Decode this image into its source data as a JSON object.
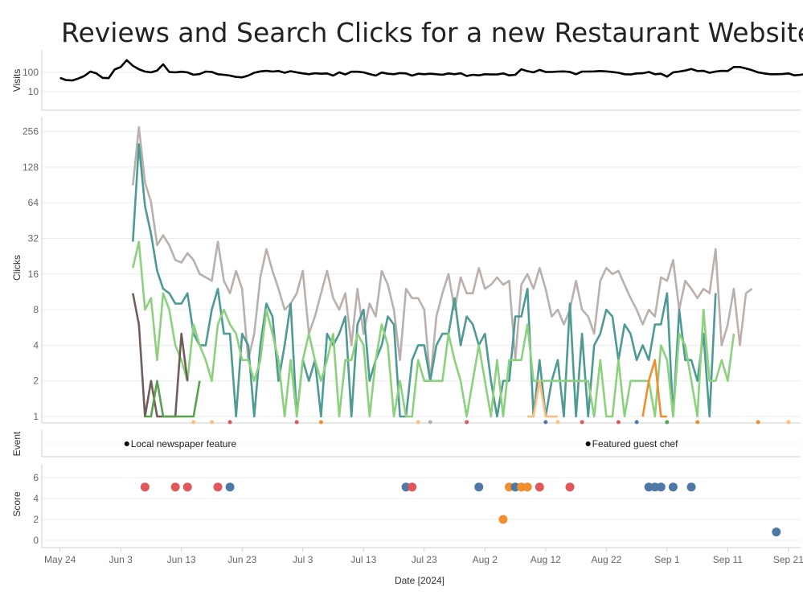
{
  "title": "Reviews and Search Clicks for a new Restaurant Website",
  "chart_data": {
    "type": "line",
    "xlabel": "Date [2024]",
    "x_ticks": [
      "May 24",
      "Jun 3",
      "Jun 13",
      "Jun 23",
      "Jul 3",
      "Jul 13",
      "Jul 23",
      "Aug 2",
      "Aug 12",
      "Aug 22",
      "Sep 1",
      "Sep 11",
      "Sep 21"
    ],
    "x_range": [
      "2024-05-21",
      "2024-09-23"
    ],
    "panels": {
      "visits": {
        "ylabel": "Visits",
        "scale": "log",
        "y_ticks": [
          "100",
          "10"
        ],
        "color": "#000000",
        "start": "2024-05-24",
        "values": [
          52,
          40,
          38,
          48,
          65,
          110,
          88,
          52,
          50,
          140,
          190,
          430,
          220,
          145,
          110,
          100,
          125,
          260,
          105,
          100,
          108,
          100,
          75,
          82,
          110,
          105,
          80,
          75,
          68,
          58,
          55,
          68,
          95,
          112,
          120,
          110,
          118,
          95,
          115,
          100,
          88,
          80,
          90,
          85,
          88,
          68,
          100,
          78,
          108,
          108,
          100,
          82,
          68,
          98,
          85,
          80,
          92,
          88,
          68,
          85,
          80,
          85,
          80,
          75,
          88,
          80,
          90,
          65,
          75,
          70,
          80,
          78,
          78,
          88,
          70,
          75,
          145,
          115,
          100,
          135,
          105,
          105,
          110,
          112,
          105,
          80,
          110,
          110,
          112,
          118,
          112,
          105,
          95,
          80,
          78,
          88,
          90,
          105,
          80,
          85,
          60,
          100,
          110,
          125,
          150,
          118,
          120,
          95,
          110,
          120,
          118,
          190,
          190,
          160,
          130,
          100,
          88,
          80,
          80,
          82,
          88,
          70,
          75,
          85,
          82,
          82,
          85
        ]
      },
      "clicks": {
        "ylabel": "Clicks",
        "scale": "log2",
        "y_ticks": [
          "1",
          "2",
          "4",
          "8",
          "16",
          "32",
          "64",
          "128",
          "256"
        ],
        "series": [
          {
            "color": "#bab0ac",
            "start": "2024-06-05",
            "values": [
              90,
              280,
              95,
              65,
              28,
              34,
              28,
              21,
              20,
              24,
              21,
              16,
              15,
              14,
              30,
              14,
              11,
              17,
              12,
              3,
              5,
              15,
              26,
              17,
              12,
              8,
              9,
              11,
              17,
              5,
              7,
              11,
              17,
              10,
              8,
              11,
              4,
              12,
              5,
              9,
              7,
              17,
              13,
              8,
              3,
              12,
              10,
              10,
              8,
              2,
              7,
              11,
              16,
              8,
              15,
              11,
              11,
              18,
              12,
              13,
              15,
              13,
              14,
              3,
              13,
              16,
              12,
              18,
              12,
              7,
              8,
              6,
              8,
              14,
              8,
              7,
              5,
              14,
              18,
              16,
              17,
              13,
              10,
              8,
              6,
              8,
              7,
              15,
              14,
              21,
              8,
              14,
              12,
              10,
              12,
              11,
              26,
              4,
              6,
              12,
              4,
              11,
              12
            ]
          },
          {
            "color": "#4e9a94",
            "start": "2024-06-05",
            "values": [
              30,
              200,
              60,
              35,
              17,
              12,
              11,
              9,
              9,
              11,
              5,
              4,
              4,
              8,
              12,
              5,
              5,
              1,
              5,
              4,
              1,
              4,
              9,
              7,
              2,
              4,
              9,
              1,
              3,
              2,
              3,
              1,
              5,
              4,
              5,
              7,
              1,
              6,
              8,
              2,
              3,
              4,
              7,
              6,
              1,
              1,
              3,
              4,
              4,
              2,
              4,
              5,
              5,
              10,
              4,
              7,
              6,
              4,
              5,
              2,
              1,
              2,
              2,
              7,
              7,
              12,
              1,
              3,
              1,
              2,
              3,
              1,
              9,
              1,
              5,
              1,
              4,
              5,
              8,
              7,
              3,
              6,
              5,
              3,
              4,
              3,
              6,
              6,
              11,
              1,
              8,
              3,
              3,
              2,
              5,
              1,
              11
            ]
          },
          {
            "color": "#8cd17d",
            "start": "2024-06-05",
            "values": [
              18,
              30,
              8,
              10,
              3,
              11,
              8,
              4,
              3,
              2,
              6,
              4,
              3,
              2,
              6,
              8,
              6,
              5,
              3,
              3,
              2,
              3,
              8,
              5,
              3,
              1,
              3,
              1,
              3,
              5,
              3,
              2,
              3,
              5,
              1,
              3,
              3,
              5,
              4,
              1,
              3,
              6,
              4,
              1,
              2,
              1,
              1,
              3,
              2,
              2,
              2,
              2,
              5,
              3,
              2,
              1,
              2,
              4,
              2,
              1,
              3,
              1,
              3,
              3,
              3,
              6,
              2,
              2,
              2,
              2,
              2,
              2,
              2,
              2,
              2,
              2,
              1,
              3,
              1,
              1,
              3,
              1,
              2,
              2,
              2,
              2,
              1,
              4,
              3,
              1,
              5,
              4,
              2,
              1,
              8,
              2,
              2,
              3,
              2,
              5
            ]
          },
          {
            "color": "#6f5f58",
            "start": "2024-06-05",
            "values": [
              11,
              6,
              1,
              2,
              1,
              1,
              1,
              1,
              5,
              2
            ]
          },
          {
            "color": "#59a14f",
            "start": "2024-06-07",
            "values": [
              1,
              1,
              2,
              1,
              1,
              1,
              1,
              1,
              1,
              2
            ]
          },
          {
            "color": "#ffbe7d",
            "start": "2024-08-09",
            "values": [
              1,
              1,
              2,
              1,
              1,
              1
            ]
          },
          {
            "color": "#f28e2b",
            "start": "2024-08-28",
            "values": [
              1,
              2,
              3,
              1,
              1
            ]
          }
        ]
      },
      "event": {
        "ylabel": "Event",
        "items": [
          {
            "date": "2024-06-04",
            "label": "Local newspaper feature"
          },
          {
            "date": "2024-08-19",
            "label": "Featured guest chef"
          }
        ]
      },
      "score": {
        "ylabel": "Score",
        "y_ticks": [
          "0",
          "2",
          "4",
          "6"
        ],
        "points": [
          {
            "date": "2024-06-07",
            "score": 5.1,
            "color": "#e15759"
          },
          {
            "date": "2024-06-12",
            "score": 5.1,
            "color": "#e15759"
          },
          {
            "date": "2024-06-14",
            "score": 5.1,
            "color": "#e15759"
          },
          {
            "date": "2024-06-19",
            "score": 5.1,
            "color": "#e15759"
          },
          {
            "date": "2024-06-21",
            "score": 5.1,
            "color": "#4e79a7"
          },
          {
            "date": "2024-07-20",
            "score": 5.1,
            "color": "#4e79a7"
          },
          {
            "date": "2024-07-21",
            "score": 5.1,
            "color": "#e15759"
          },
          {
            "date": "2024-08-01",
            "score": 5.1,
            "color": "#4e79a7"
          },
          {
            "date": "2024-08-06",
            "score": 5.1,
            "color": "#f28e2b"
          },
          {
            "date": "2024-08-07",
            "score": 5.1,
            "color": "#4e79a7"
          },
          {
            "date": "2024-08-08",
            "score": 5.1,
            "color": "#f28e2b"
          },
          {
            "date": "2024-08-09",
            "score": 5.1,
            "color": "#f28e2b"
          },
          {
            "date": "2024-08-11",
            "score": 5.1,
            "color": "#e15759"
          },
          {
            "date": "2024-08-16",
            "score": 5.1,
            "color": "#e15759"
          },
          {
            "date": "2024-08-29",
            "score": 5.1,
            "color": "#4e79a7"
          },
          {
            "date": "2024-08-30",
            "score": 5.1,
            "color": "#4e79a7"
          },
          {
            "date": "2024-08-31",
            "score": 5.1,
            "color": "#4e79a7"
          },
          {
            "date": "2024-09-02",
            "score": 5.1,
            "color": "#4e79a7"
          },
          {
            "date": "2024-09-05",
            "score": 5.1,
            "color": "#4e79a7"
          },
          {
            "date": "2024-08-05",
            "score": 2,
            "color": "#f28e2b"
          },
          {
            "date": "2024-09-19",
            "score": 0.8,
            "color": "#4e79a7"
          }
        ]
      }
    },
    "zero_markers": [
      {
        "date": "2024-06-15",
        "color": "#ffbe7d"
      },
      {
        "date": "2024-06-18",
        "color": "#ffbe7d"
      },
      {
        "date": "2024-06-21",
        "color": "#e15759"
      },
      {
        "date": "2024-07-02",
        "color": "#e15759"
      },
      {
        "date": "2024-07-06",
        "color": "#f28e2b"
      },
      {
        "date": "2024-07-22",
        "color": "#ffbe7d"
      },
      {
        "date": "2024-07-24",
        "color": "#bab0ac"
      },
      {
        "date": "2024-07-30",
        "color": "#e15759"
      },
      {
        "date": "2024-08-12",
        "color": "#4e79a7"
      },
      {
        "date": "2024-08-14",
        "color": "#ffbe7d"
      },
      {
        "date": "2024-08-18",
        "color": "#e15759"
      },
      {
        "date": "2024-08-24",
        "color": "#e15759"
      },
      {
        "date": "2024-08-27",
        "color": "#4e79a7"
      },
      {
        "date": "2024-09-01",
        "color": "#59a14f"
      },
      {
        "date": "2024-09-06",
        "color": "#f28e2b"
      },
      {
        "date": "2024-09-16",
        "color": "#f28e2b"
      },
      {
        "date": "2024-09-21",
        "color": "#ffbe7d"
      }
    ]
  }
}
